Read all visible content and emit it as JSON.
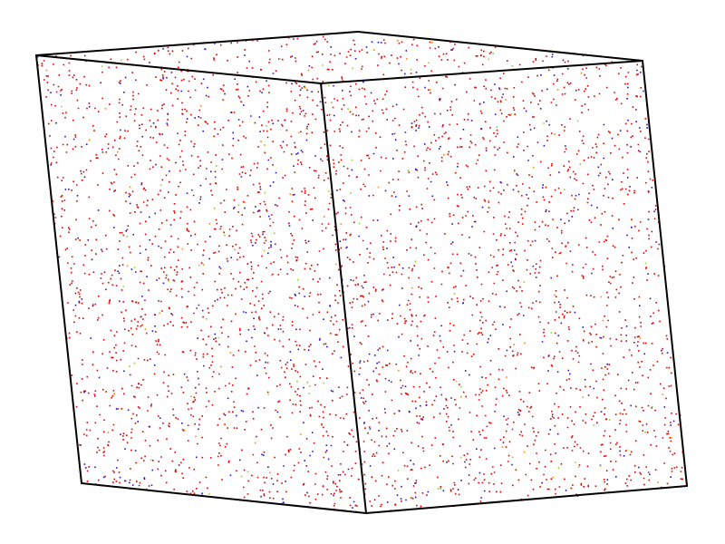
{
  "scene": {
    "background_color": "#ffffff",
    "box_edge_color": "#000000",
    "atom_species": [
      {
        "color": "#e00000",
        "share": 0.82
      },
      {
        "color": "#2a12c8",
        "share": 0.14
      },
      {
        "color": "#9acd32",
        "share": 0.02
      },
      {
        "color": "#ff8a00",
        "share": 0.02
      }
    ]
  }
}
